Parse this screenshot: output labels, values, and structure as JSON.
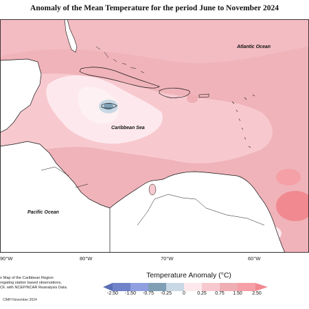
{
  "title": "Anomaly of the Mean Temperature for the period June to November 2024",
  "map": {
    "ocean_labels": {
      "atlantic": "Atlantic Ocean",
      "caribbean": "Caribbean Sea",
      "pacific": "Pacific Ocean"
    },
    "longitude_labels": [
      "90°W",
      "80°W",
      "70°W",
      "60°W"
    ],
    "colors": {
      "land": "#ffffff",
      "coast": "#111111",
      "neg_2_50": "#5a6fb5",
      "neg_1_50": "#8f9fe0",
      "neg_0_75": "#7f9fb5",
      "neg_0_25": "#c8d8e4",
      "pos_0_25": "#fde9ed",
      "pos_0_75": "#f7c9cf",
      "pos_1_50": "#efaeb4",
      "pos_2_50": "#f08a90"
    }
  },
  "legend": {
    "title": "Temperature Anomaly (°C)",
    "ticks": [
      "-2.50",
      "-1.50",
      "-0.75",
      "-0.25",
      "0",
      "0.25",
      "0.75",
      "1.50",
      "2.50"
    ]
  },
  "footer": {
    "note_lines": [
      "n Map of the Caribbean Region",
      "regating station based observations,",
      "CF, with NCEP/NCAR Reanalysis Data."
    ],
    "credit": "CIMH November 2024"
  }
}
